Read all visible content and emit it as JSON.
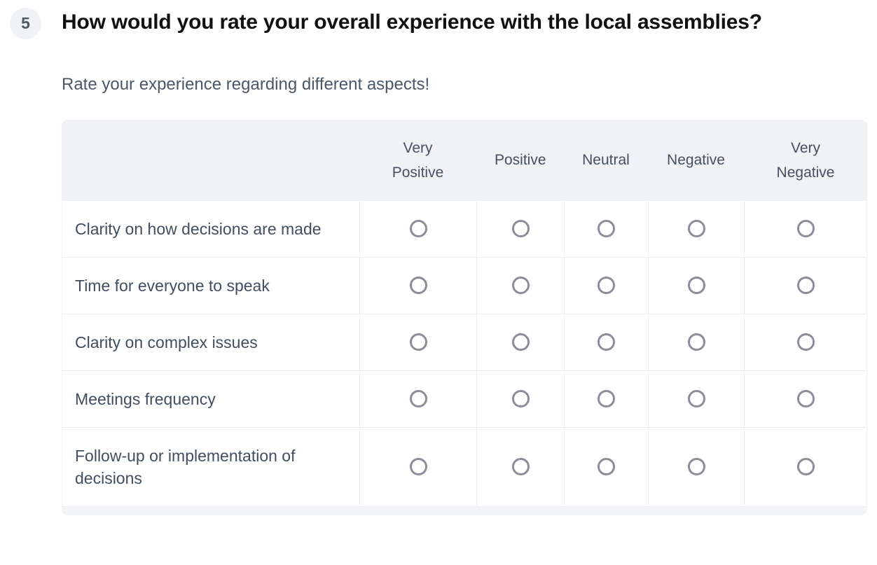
{
  "question": {
    "number": "5",
    "title": "How would you rate your overall experience with the local assemblies?",
    "subtitle": "Rate your experience regarding different aspects!"
  },
  "matrix": {
    "columns": [
      "Very Positive",
      "Positive",
      "Neutral",
      "Negative",
      "Very Negative"
    ],
    "rows": [
      "Clarity on how decisions are made",
      "Time for everyone to speak",
      "Clarity on complex issues",
      "Meetings frequency",
      "Follow-up or implementation of decisions"
    ]
  },
  "colors": {
    "header_bg": "#f1f2f6",
    "row_border": "#ebedf2",
    "radio_border": "#8d8d99",
    "title_text": "#101113",
    "body_text": "#414e5f",
    "badge_bg": "#f0f2f5",
    "badge_text": "#4d5866"
  }
}
